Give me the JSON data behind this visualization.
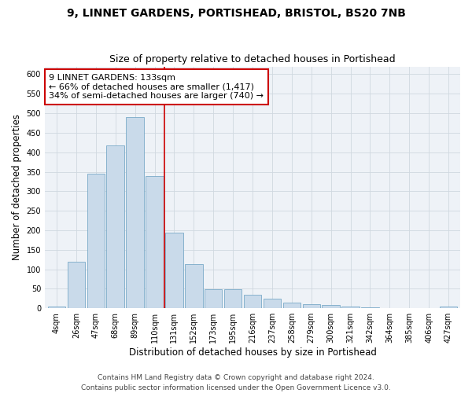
{
  "title_line1": "9, LINNET GARDENS, PORTISHEAD, BRISTOL, BS20 7NB",
  "title_line2": "Size of property relative to detached houses in Portishead",
  "xlabel": "Distribution of detached houses by size in Portishead",
  "ylabel": "Number of detached properties",
  "footer_line1": "Contains HM Land Registry data © Crown copyright and database right 2024.",
  "footer_line2": "Contains public sector information licensed under the Open Government Licence v3.0.",
  "bar_labels": [
    "4sqm",
    "26sqm",
    "47sqm",
    "68sqm",
    "89sqm",
    "110sqm",
    "131sqm",
    "152sqm",
    "173sqm",
    "195sqm",
    "216sqm",
    "237sqm",
    "258sqm",
    "279sqm",
    "300sqm",
    "321sqm",
    "342sqm",
    "364sqm",
    "385sqm",
    "406sqm",
    "427sqm"
  ],
  "bar_values": [
    5,
    120,
    345,
    418,
    490,
    338,
    193,
    113,
    49,
    49,
    35,
    25,
    15,
    10,
    8,
    4,
    2,
    1,
    1,
    1,
    4
  ],
  "bar_color": "#c9daea",
  "bar_edge_color": "#7aaac8",
  "annotation_title": "9 LINNET GARDENS: 133sqm",
  "annotation_line1": "← 66% of detached houses are smaller (1,417)",
  "annotation_line2": "34% of semi-detached houses are larger (740) →",
  "annotation_box_color": "#ffffff",
  "annotation_box_edge_color": "#cc0000",
  "vline_color": "#cc0000",
  "vline_x_index": 5.5,
  "ylim": [
    0,
    620
  ],
  "yticks": [
    0,
    50,
    100,
    150,
    200,
    250,
    300,
    350,
    400,
    450,
    500,
    550,
    600
  ],
  "grid_color": "#d0d8e0",
  "background_color": "#eef2f7",
  "title1_fontsize": 10,
  "title2_fontsize": 9,
  "axis_label_fontsize": 8.5,
  "tick_fontsize": 7,
  "annotation_fontsize": 8,
  "footer_fontsize": 6.5
}
